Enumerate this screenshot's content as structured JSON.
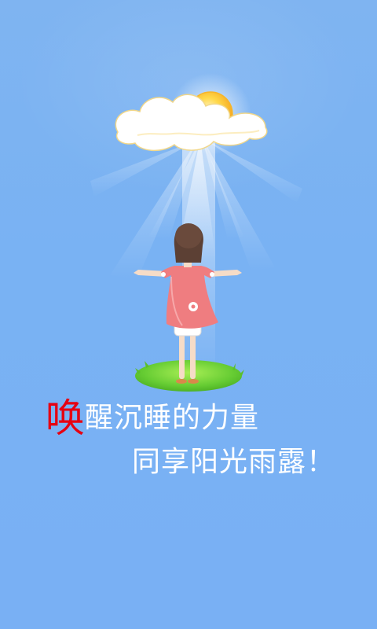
{
  "screen": {
    "name": "splash-screen",
    "background_color": "#79b2f3"
  },
  "illustration": {
    "description_icons": [
      "sun-icon",
      "cloud-icon",
      "light-rays",
      "girl-figure",
      "grass-patch"
    ]
  },
  "slogan": {
    "accent_char": "唤",
    "line1_rest": "醒沉睡的力量",
    "line2": "同享阳光雨露！",
    "accent_color": "#e60012",
    "text_color": "#ffffff"
  }
}
